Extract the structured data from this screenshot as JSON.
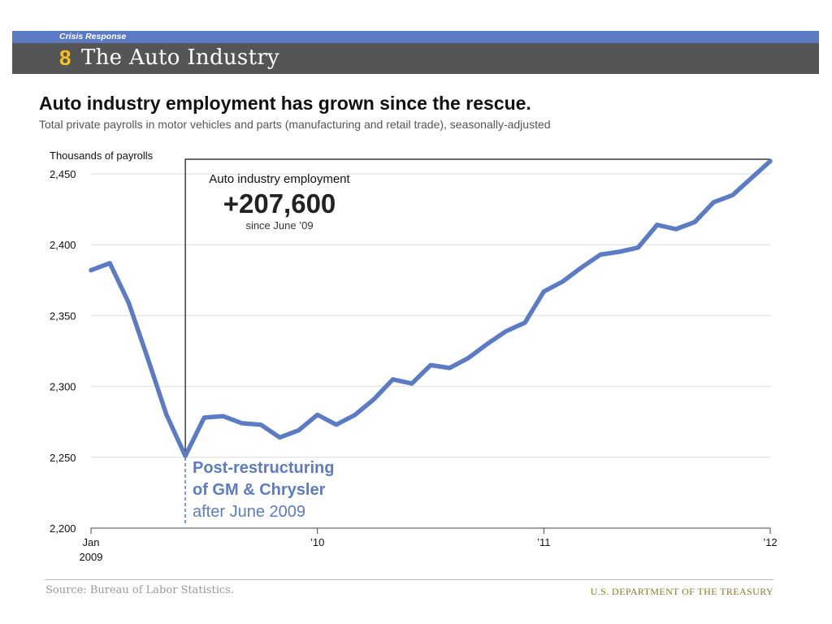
{
  "header": {
    "section_label": "Crisis Response",
    "section_number": "8",
    "section_title": "The Auto Industry"
  },
  "title": "Auto industry employment has grown since the rescue.",
  "subtitle": "Total private payrolls in motor vehicles and parts (manufacturing and retail trade), seasonally-adjusted",
  "callout": {
    "label": "Auto industry employment",
    "value": "+207,600",
    "since": "since June ’09"
  },
  "annotation": {
    "line1": "Post-restructuring",
    "line2": "of GM & Chrysler",
    "line3": "after June 2009"
  },
  "footer": {
    "source": "Source: Bureau of Labor Statistics.",
    "agency": "U.S. DEPARTMENT OF THE TREASURY"
  },
  "colors": {
    "series": "#5b7bc4",
    "header_band": "#5b7bc4",
    "title_band": "#555555",
    "section_number": "#f4c21a",
    "agency": "#8a7a2a"
  },
  "chart_data": {
    "type": "line",
    "ylabel": "Thousands of payrolls",
    "xlabel": "",
    "ylim": [
      2200,
      2460
    ],
    "yticks": [
      2200,
      2250,
      2300,
      2350,
      2400,
      2450
    ],
    "ytick_labels": [
      "2,200",
      "2,250",
      "2,300",
      "2,350",
      "2,400",
      "2,450"
    ],
    "xticks": [
      {
        "index": 0,
        "label": "Jan",
        "label2": "2009"
      },
      {
        "index": 12,
        "label": "’10",
        "label2": ""
      },
      {
        "index": 24,
        "label": "’11",
        "label2": ""
      },
      {
        "index": 36,
        "label": "’12",
        "label2": ""
      }
    ],
    "x_start": "2009-01",
    "x_end": "2012-01",
    "grid": true,
    "highlight_index": 5,
    "series": [
      {
        "name": "Auto industry employment",
        "values": [
          2382,
          2387,
          2359,
          2320,
          2280,
          2251,
          2278,
          2279,
          2274,
          2273,
          2264,
          2269,
          2280,
          2273,
          2280,
          2291,
          2305,
          2302,
          2315,
          2313,
          2320,
          2330,
          2339,
          2345,
          2367,
          2374,
          2384,
          2393,
          2395,
          2398,
          2414,
          2411,
          2416,
          2430,
          2435,
          2447,
          2459
        ]
      }
    ]
  }
}
